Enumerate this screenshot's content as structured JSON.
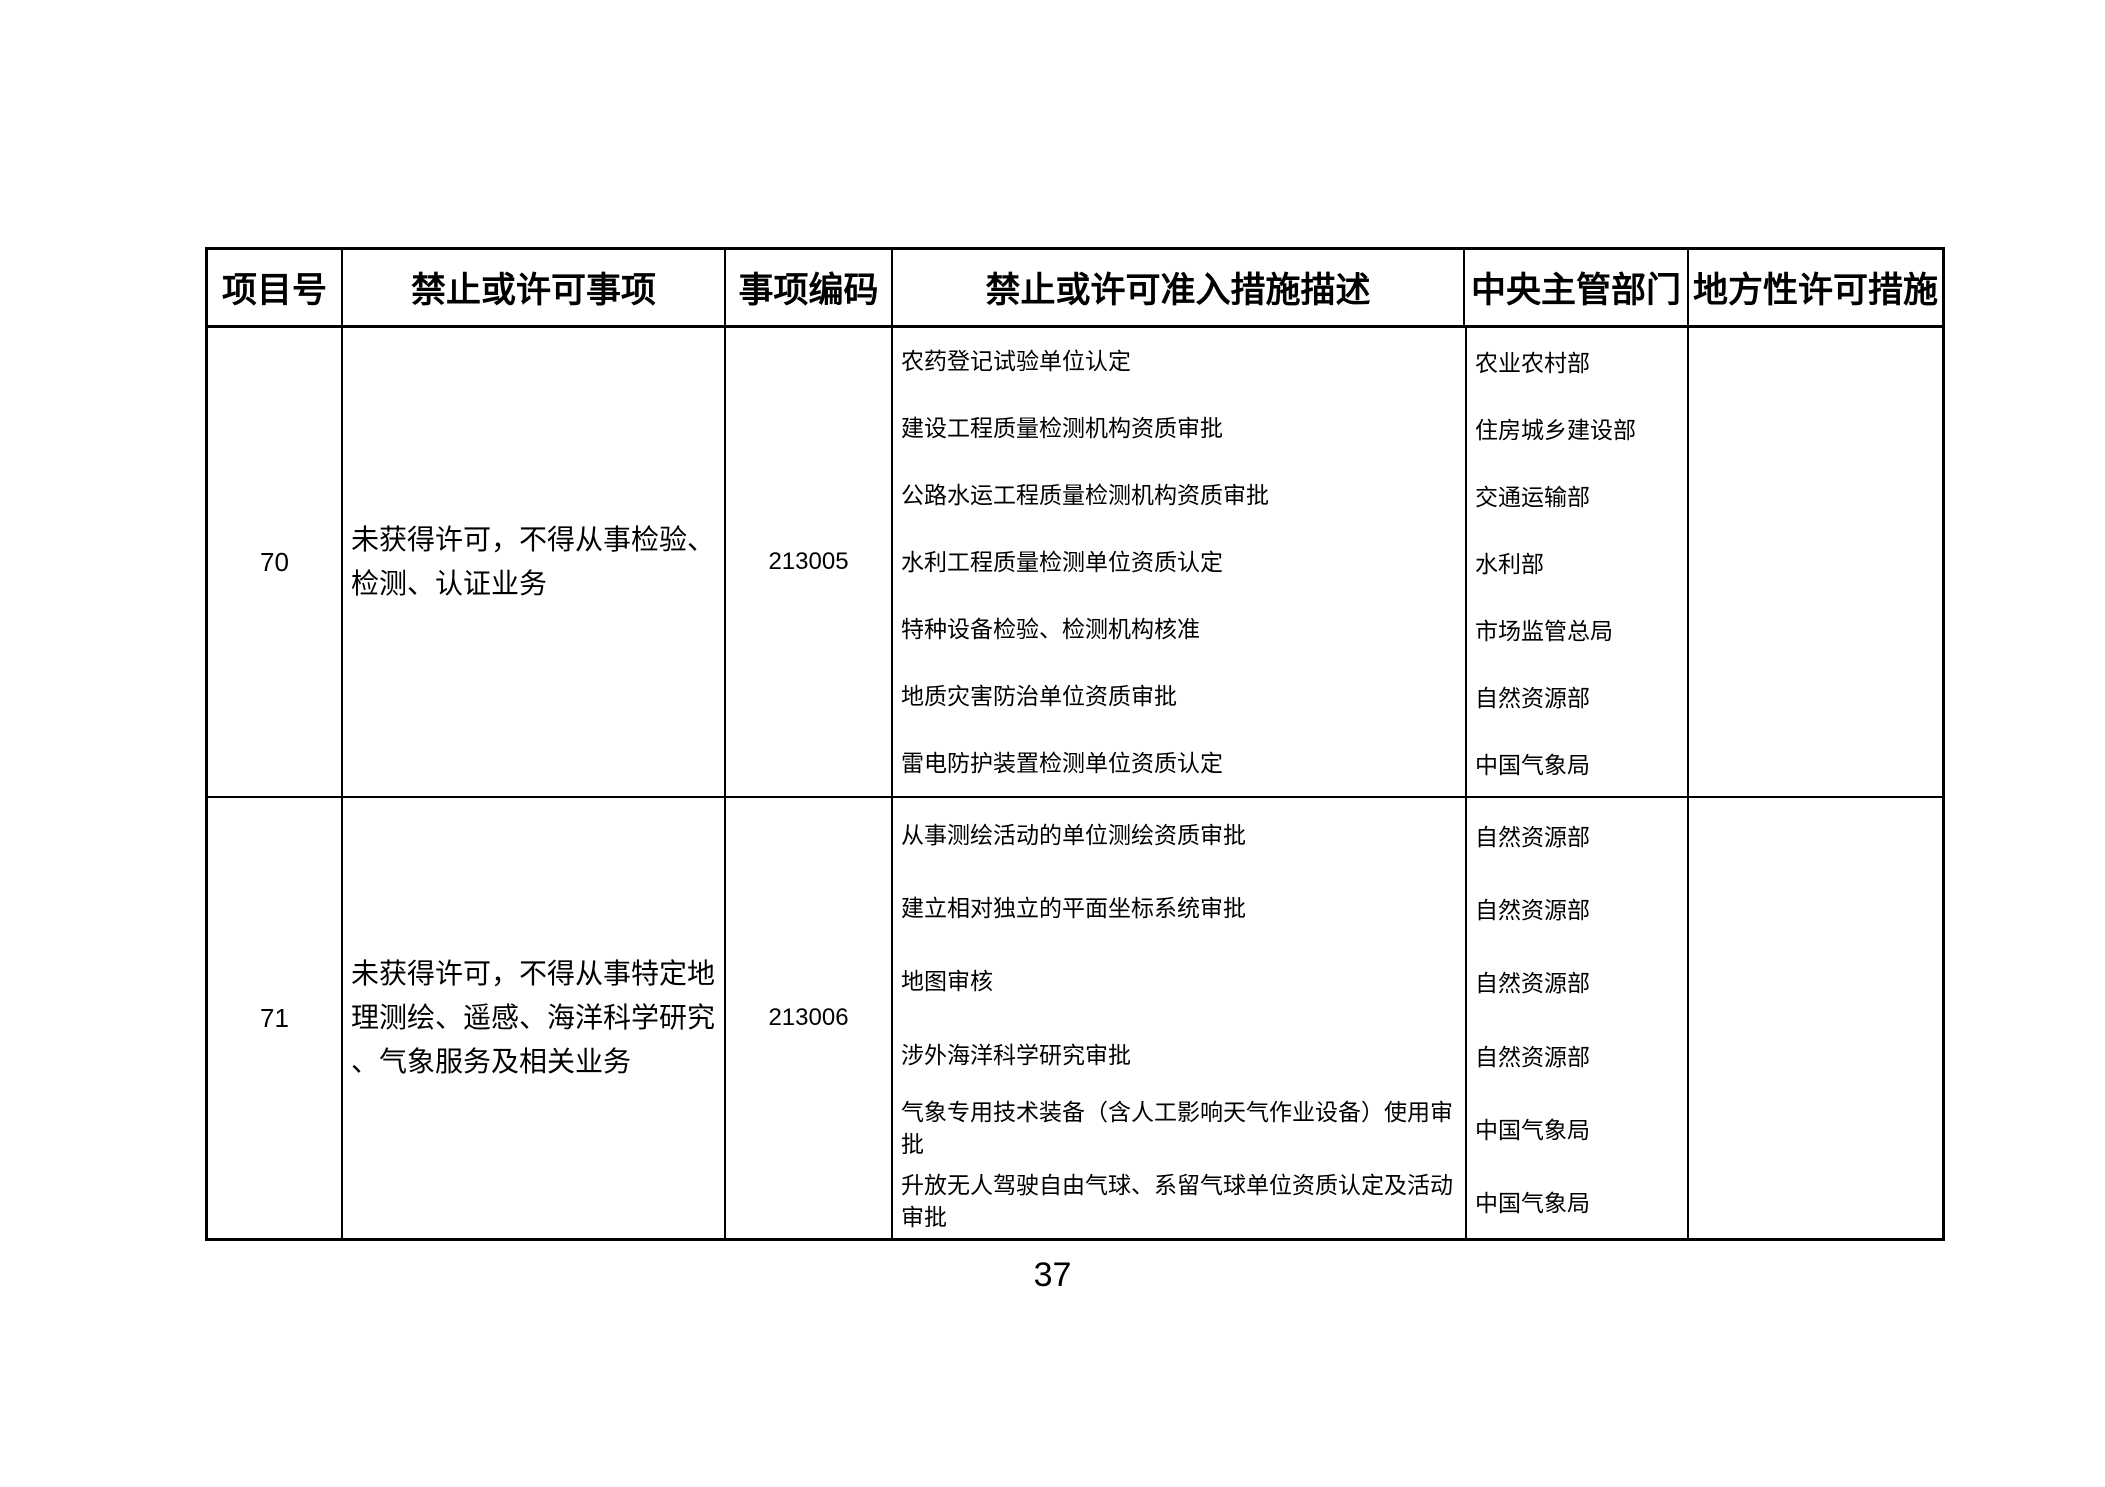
{
  "page": {
    "number": "37"
  },
  "table": {
    "headers": [
      "项目号",
      "禁止或许可事项",
      "事项编码",
      "禁止或许可准入措施描述",
      "中央主管部门",
      "地方性许可措施"
    ],
    "rows": [
      {
        "item_no": "70",
        "matter": "未获得许可，不得从事检验、检测、认证业务",
        "code": "213005",
        "local_measures": "",
        "measures": [
          {
            "description": "农药登记试验单位认定",
            "department": "农业农村部"
          },
          {
            "description": "建设工程质量检测机构资质审批",
            "department": "住房城乡建设部"
          },
          {
            "description": "公路水运工程质量检测机构资质审批",
            "department": "交通运输部"
          },
          {
            "description": "水利工程质量检测单位资质认定",
            "department": "水利部"
          },
          {
            "description": "特种设备检验、检测机构核准",
            "department": "市场监管总局"
          },
          {
            "description": "地质灾害防治单位资质审批",
            "department": "自然资源部"
          },
          {
            "description": "雷电防护装置检测单位资质认定",
            "department": "中国气象局"
          }
        ]
      },
      {
        "item_no": "71",
        "matter": "未获得许可，不得从事特定地理测绘、遥感、海洋科学研究、气象服务及相关业务",
        "code": "213006",
        "local_measures": "",
        "measures": [
          {
            "description": "从事测绘活动的单位测绘资质审批",
            "department": "自然资源部"
          },
          {
            "description": "建立相对独立的平面坐标系统审批",
            "department": "自然资源部"
          },
          {
            "description": "地图审核",
            "department": "自然资源部"
          },
          {
            "description": "涉外海洋科学研究审批",
            "department": "自然资源部"
          },
          {
            "description": "气象专用技术装备（含人工影响天气作业设备）使用审批",
            "department": "中国气象局"
          },
          {
            "description": "升放无人驾驶自由气球、系留气球单位资质认定及活动审批",
            "department": "中国气象局"
          }
        ]
      }
    ]
  }
}
